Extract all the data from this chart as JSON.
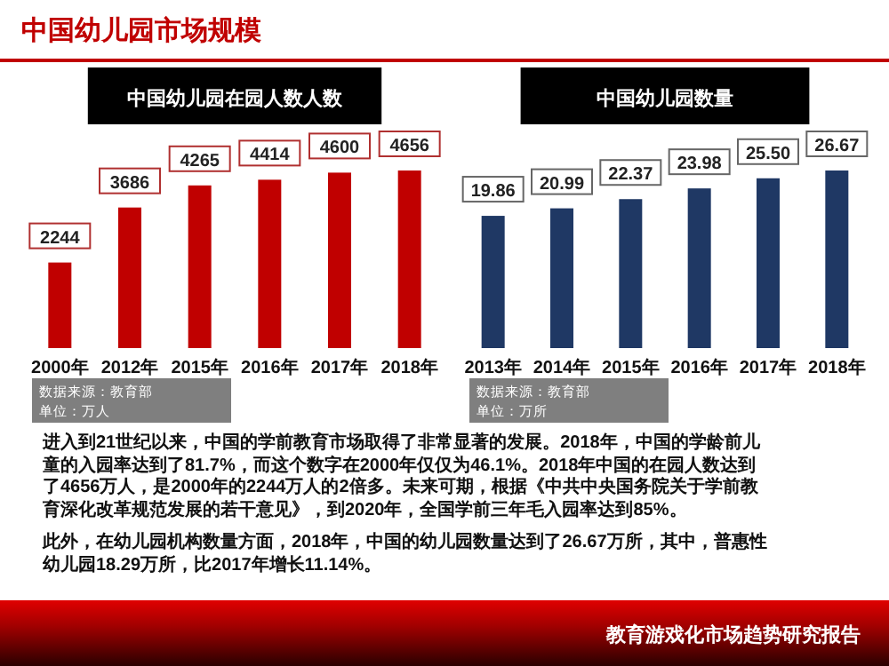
{
  "chart_data": [
    {
      "type": "bar",
      "title": "中国幼儿园在园人数人数",
      "categories": [
        "2000年",
        "2012年",
        "2015年",
        "2016年",
        "2017年",
        "2018年"
      ],
      "values": [
        2244,
        3686,
        4265,
        4414,
        4600,
        4656
      ],
      "color": "#c00000",
      "data_labels": true,
      "annotations": [
        "中国幼儿园市场规模",
        "数据来源：教育部",
        "单位：万人",
        "进入到21世纪以来，中国的学前教育市场取得了非常显著的发展。2018年，中国的学龄前儿童的入园率达到了81.7%，而这个数字在2000年仅仅为46.1%。2018年中国的在园人数达到了4656万人，是2000年的2244万人的2倍多。未来可期，根据《中共中央国务院关于学前教育深化改革规范发展的若干意见》，到2020年，全国学前三年毛入园率达到85%。",
        "此外，在幼儿园机构数量方面，2018年，中国的幼儿园数量达到了26.67万所，其中，普惠性幼儿园18.29万所，比2017年增长11.14%。"
      ]
    },
    {
      "type": "bar",
      "title": "中国幼儿园数量",
      "categories": [
        "2013年",
        "2014年",
        "2015年",
        "2016年",
        "2017年",
        "2018年"
      ],
      "values": [
        19.86,
        20.99,
        22.37,
        23.98,
        25.5,
        26.67
      ],
      "value_labels": [
        "19.86",
        "20.99",
        "22.37",
        "23.98",
        "25.50",
        "26.67"
      ],
      "color": "#1f3864",
      "annotations": [
        "数据来源：教育部",
        "单位：万所",
        "教育游戏化市场趋势研究报告"
      ]
    }
  ]
}
